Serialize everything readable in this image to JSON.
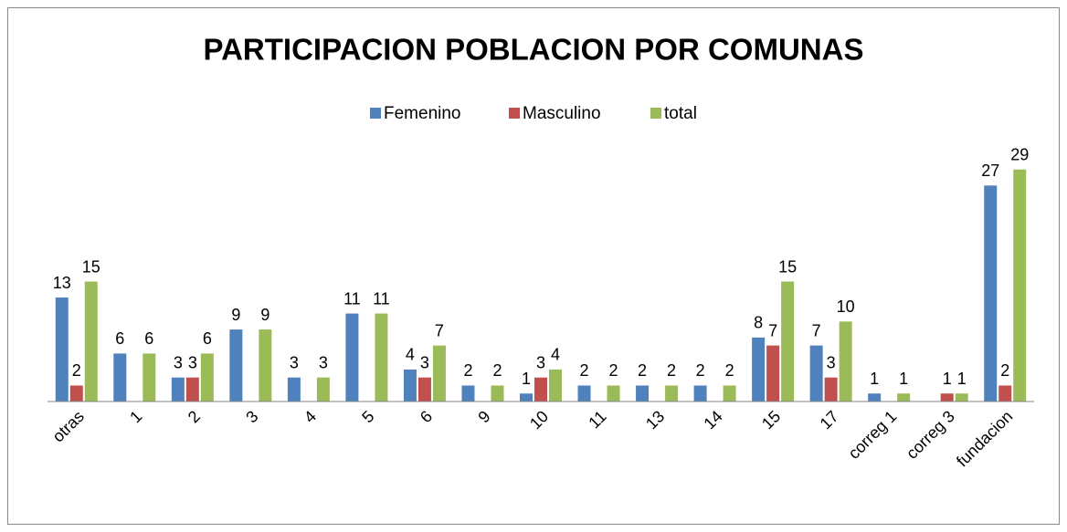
{
  "chart_data": {
    "type": "bar",
    "title": "PARTICIPACION POBLACION POR COMUNAS",
    "categories": [
      "otras",
      "1",
      "2",
      "3",
      "4",
      "5",
      "6",
      "9",
      "10",
      "11",
      "13",
      "14",
      "15",
      "17",
      "correg 1",
      "correg 3",
      "fundacion"
    ],
    "series": [
      {
        "name": "Femenino",
        "color": "#4f81bd",
        "values": [
          13,
          6,
          3,
          9,
          3,
          11,
          4,
          2,
          1,
          2,
          2,
          2,
          8,
          7,
          1,
          null,
          27
        ]
      },
      {
        "name": "Masculino",
        "color": "#c0504d",
        "values": [
          2,
          null,
          3,
          null,
          null,
          null,
          3,
          null,
          3,
          null,
          null,
          null,
          7,
          3,
          null,
          1,
          2
        ]
      },
      {
        "name": "total",
        "color": "#9bbb59",
        "values": [
          15,
          6,
          6,
          9,
          3,
          11,
          7,
          2,
          4,
          2,
          2,
          2,
          15,
          10,
          1,
          1,
          29
        ]
      }
    ],
    "ylim": [
      0,
      30
    ],
    "legend": "top"
  }
}
